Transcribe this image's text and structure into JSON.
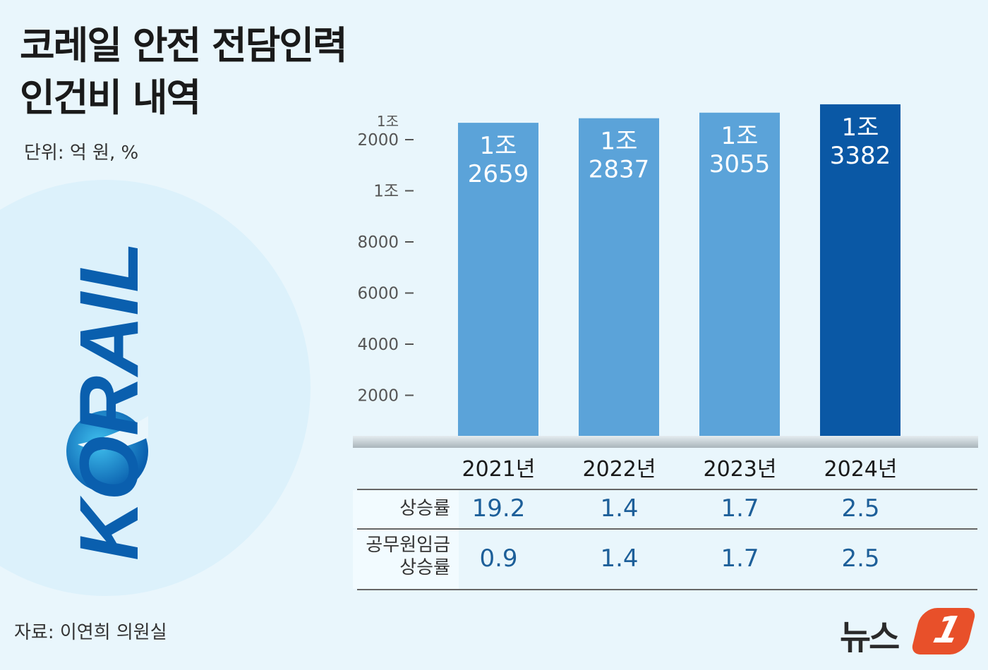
{
  "title_lines": [
    "코레일 안전 전담인력",
    "인건비 내역"
  ],
  "unit": "단위: 억 원, %",
  "source": "자료: 이연희 의원실",
  "logo_text": "KORAIL",
  "brand": {
    "text": "뉴스",
    "number": "1"
  },
  "colors": {
    "bar": "#5ba3d9",
    "bar_highlight": "#0a58a5",
    "value_text": "#1d5f99",
    "accent": "#e8502a"
  },
  "chart_data": {
    "type": "bar",
    "title": "코레일 안전 전담인력 인건비 내역",
    "unit": "억 원",
    "categories": [
      "2021년",
      "2022년",
      "2023년",
      "2024년"
    ],
    "values": [
      12659,
      12837,
      13055,
      13382
    ],
    "value_labels": [
      [
        "1조",
        "2659"
      ],
      [
        "1조",
        "2837"
      ],
      [
        "1조",
        "3055"
      ],
      [
        "1조",
        "3382"
      ]
    ],
    "highlight_index": 3,
    "ylim": [
      0,
      13400
    ],
    "yticks": [
      {
        "value": 2000,
        "label": [
          "2000"
        ]
      },
      {
        "value": 4000,
        "label": [
          "4000"
        ]
      },
      {
        "value": 6000,
        "label": [
          "6000"
        ]
      },
      {
        "value": 8000,
        "label": [
          "8000"
        ]
      },
      {
        "value": 10000,
        "label": [
          "1조"
        ]
      },
      {
        "value": 12000,
        "label": [
          "1조",
          "2000"
        ]
      }
    ]
  },
  "table": {
    "rows": [
      {
        "label": [
          "상승률"
        ],
        "values": [
          "19.2",
          "1.4",
          "1.7",
          "2.5"
        ]
      },
      {
        "label": [
          "공무원임금",
          "상승률"
        ],
        "values": [
          "0.9",
          "1.4",
          "1.7",
          "2.5"
        ]
      }
    ]
  }
}
